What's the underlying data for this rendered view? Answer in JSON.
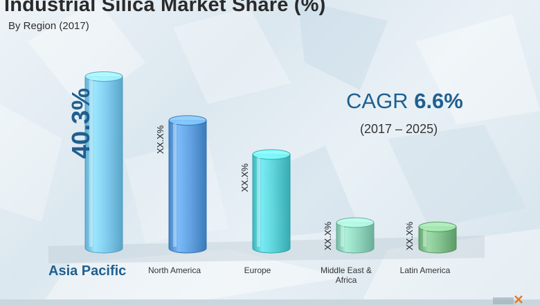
{
  "chart_data": {
    "type": "bar",
    "title": "Industrial Silica Market Share (%)",
    "subtitle": "By Region (2017)",
    "categories": [
      "Asia Pacific",
      "North America",
      "Europe",
      "Middle East & Africa",
      "Latin America"
    ],
    "values": [
      40.3,
      30,
      22,
      6,
      5
    ],
    "value_labels": [
      "40.3%",
      "XX.X%",
      "XX.X%",
      "XX.X%",
      "XX.X%"
    ],
    "colors": [
      "#7ccdf2",
      "#5b9fe2",
      "#55d3d9",
      "#8fd8bf",
      "#7fc28a"
    ],
    "annotation": {
      "label": "CAGR",
      "value": "6.6%",
      "period": "(2017 – 2025)"
    },
    "ylim": [
      0,
      42
    ]
  }
}
